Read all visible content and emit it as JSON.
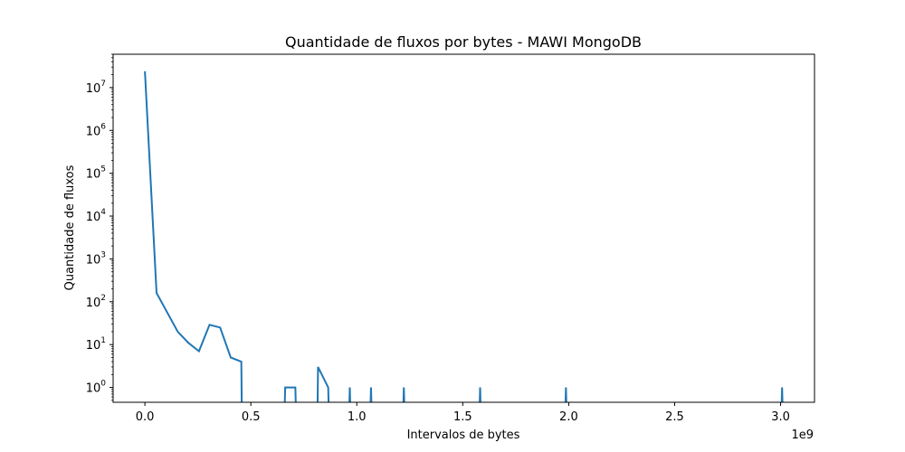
{
  "chart_data": {
    "type": "line",
    "title": "Quantidade de fluxos por bytes - MAWI MongoDB",
    "xlabel": "Intervalos de bytes",
    "ylabel": "Quantidade de fluxos",
    "x_offset_label": "1e9",
    "xscale": "linear",
    "yscale": "log",
    "xlim": [
      -0.15,
      3.16
    ],
    "ylim": [
      0.45,
      60000000
    ],
    "x_ticks": [
      {
        "value": 0.0,
        "label": "0.0"
      },
      {
        "value": 0.5,
        "label": "0.5"
      },
      {
        "value": 1.0,
        "label": "1.0"
      },
      {
        "value": 1.5,
        "label": "1.5"
      },
      {
        "value": 2.0,
        "label": "2.0"
      },
      {
        "value": 2.5,
        "label": "2.5"
      },
      {
        "value": 3.0,
        "label": "3.0"
      }
    ],
    "y_ticks": [
      {
        "value": 1,
        "base": "10",
        "exp": "0"
      },
      {
        "value": 10,
        "base": "10",
        "exp": "1"
      },
      {
        "value": 100,
        "base": "10",
        "exp": "2"
      },
      {
        "value": 1000,
        "base": "10",
        "exp": "3"
      },
      {
        "value": 10000,
        "base": "10",
        "exp": "4"
      },
      {
        "value": 100000,
        "base": "10",
        "exp": "5"
      },
      {
        "value": 1000000,
        "base": "10",
        "exp": "6"
      },
      {
        "value": 10000000,
        "base": "10",
        "exp": "7"
      }
    ],
    "grid": false,
    "series": [
      {
        "color": "#1f77b4",
        "points": [
          [
            0.0,
            24000000
          ],
          [
            0.055,
            160
          ],
          [
            0.155,
            20
          ],
          [
            0.205,
            11
          ],
          [
            0.255,
            7
          ],
          [
            0.305,
            29
          ],
          [
            0.355,
            25
          ],
          [
            0.405,
            5
          ],
          [
            0.455,
            4
          ],
          [
            0.457,
            0
          ],
          [
            0.66,
            0
          ],
          [
            0.662,
            1
          ],
          [
            0.71,
            1
          ],
          [
            0.712,
            0
          ],
          [
            0.815,
            0
          ],
          [
            0.817,
            3
          ],
          [
            0.865,
            1
          ],
          [
            0.867,
            0
          ],
          [
            0.965,
            0
          ],
          [
            0.967,
            1
          ],
          [
            0.969,
            0
          ],
          [
            1.065,
            0
          ],
          [
            1.067,
            1
          ],
          [
            1.069,
            0
          ],
          [
            1.22,
            0
          ],
          [
            1.222,
            1
          ],
          [
            1.224,
            0
          ],
          [
            1.58,
            0
          ],
          [
            1.582,
            1
          ],
          [
            1.584,
            0
          ],
          [
            1.985,
            0
          ],
          [
            1.987,
            1
          ],
          [
            1.989,
            0
          ],
          [
            3.005,
            0
          ],
          [
            3.007,
            1
          ],
          [
            3.009,
            0
          ]
        ]
      }
    ]
  }
}
